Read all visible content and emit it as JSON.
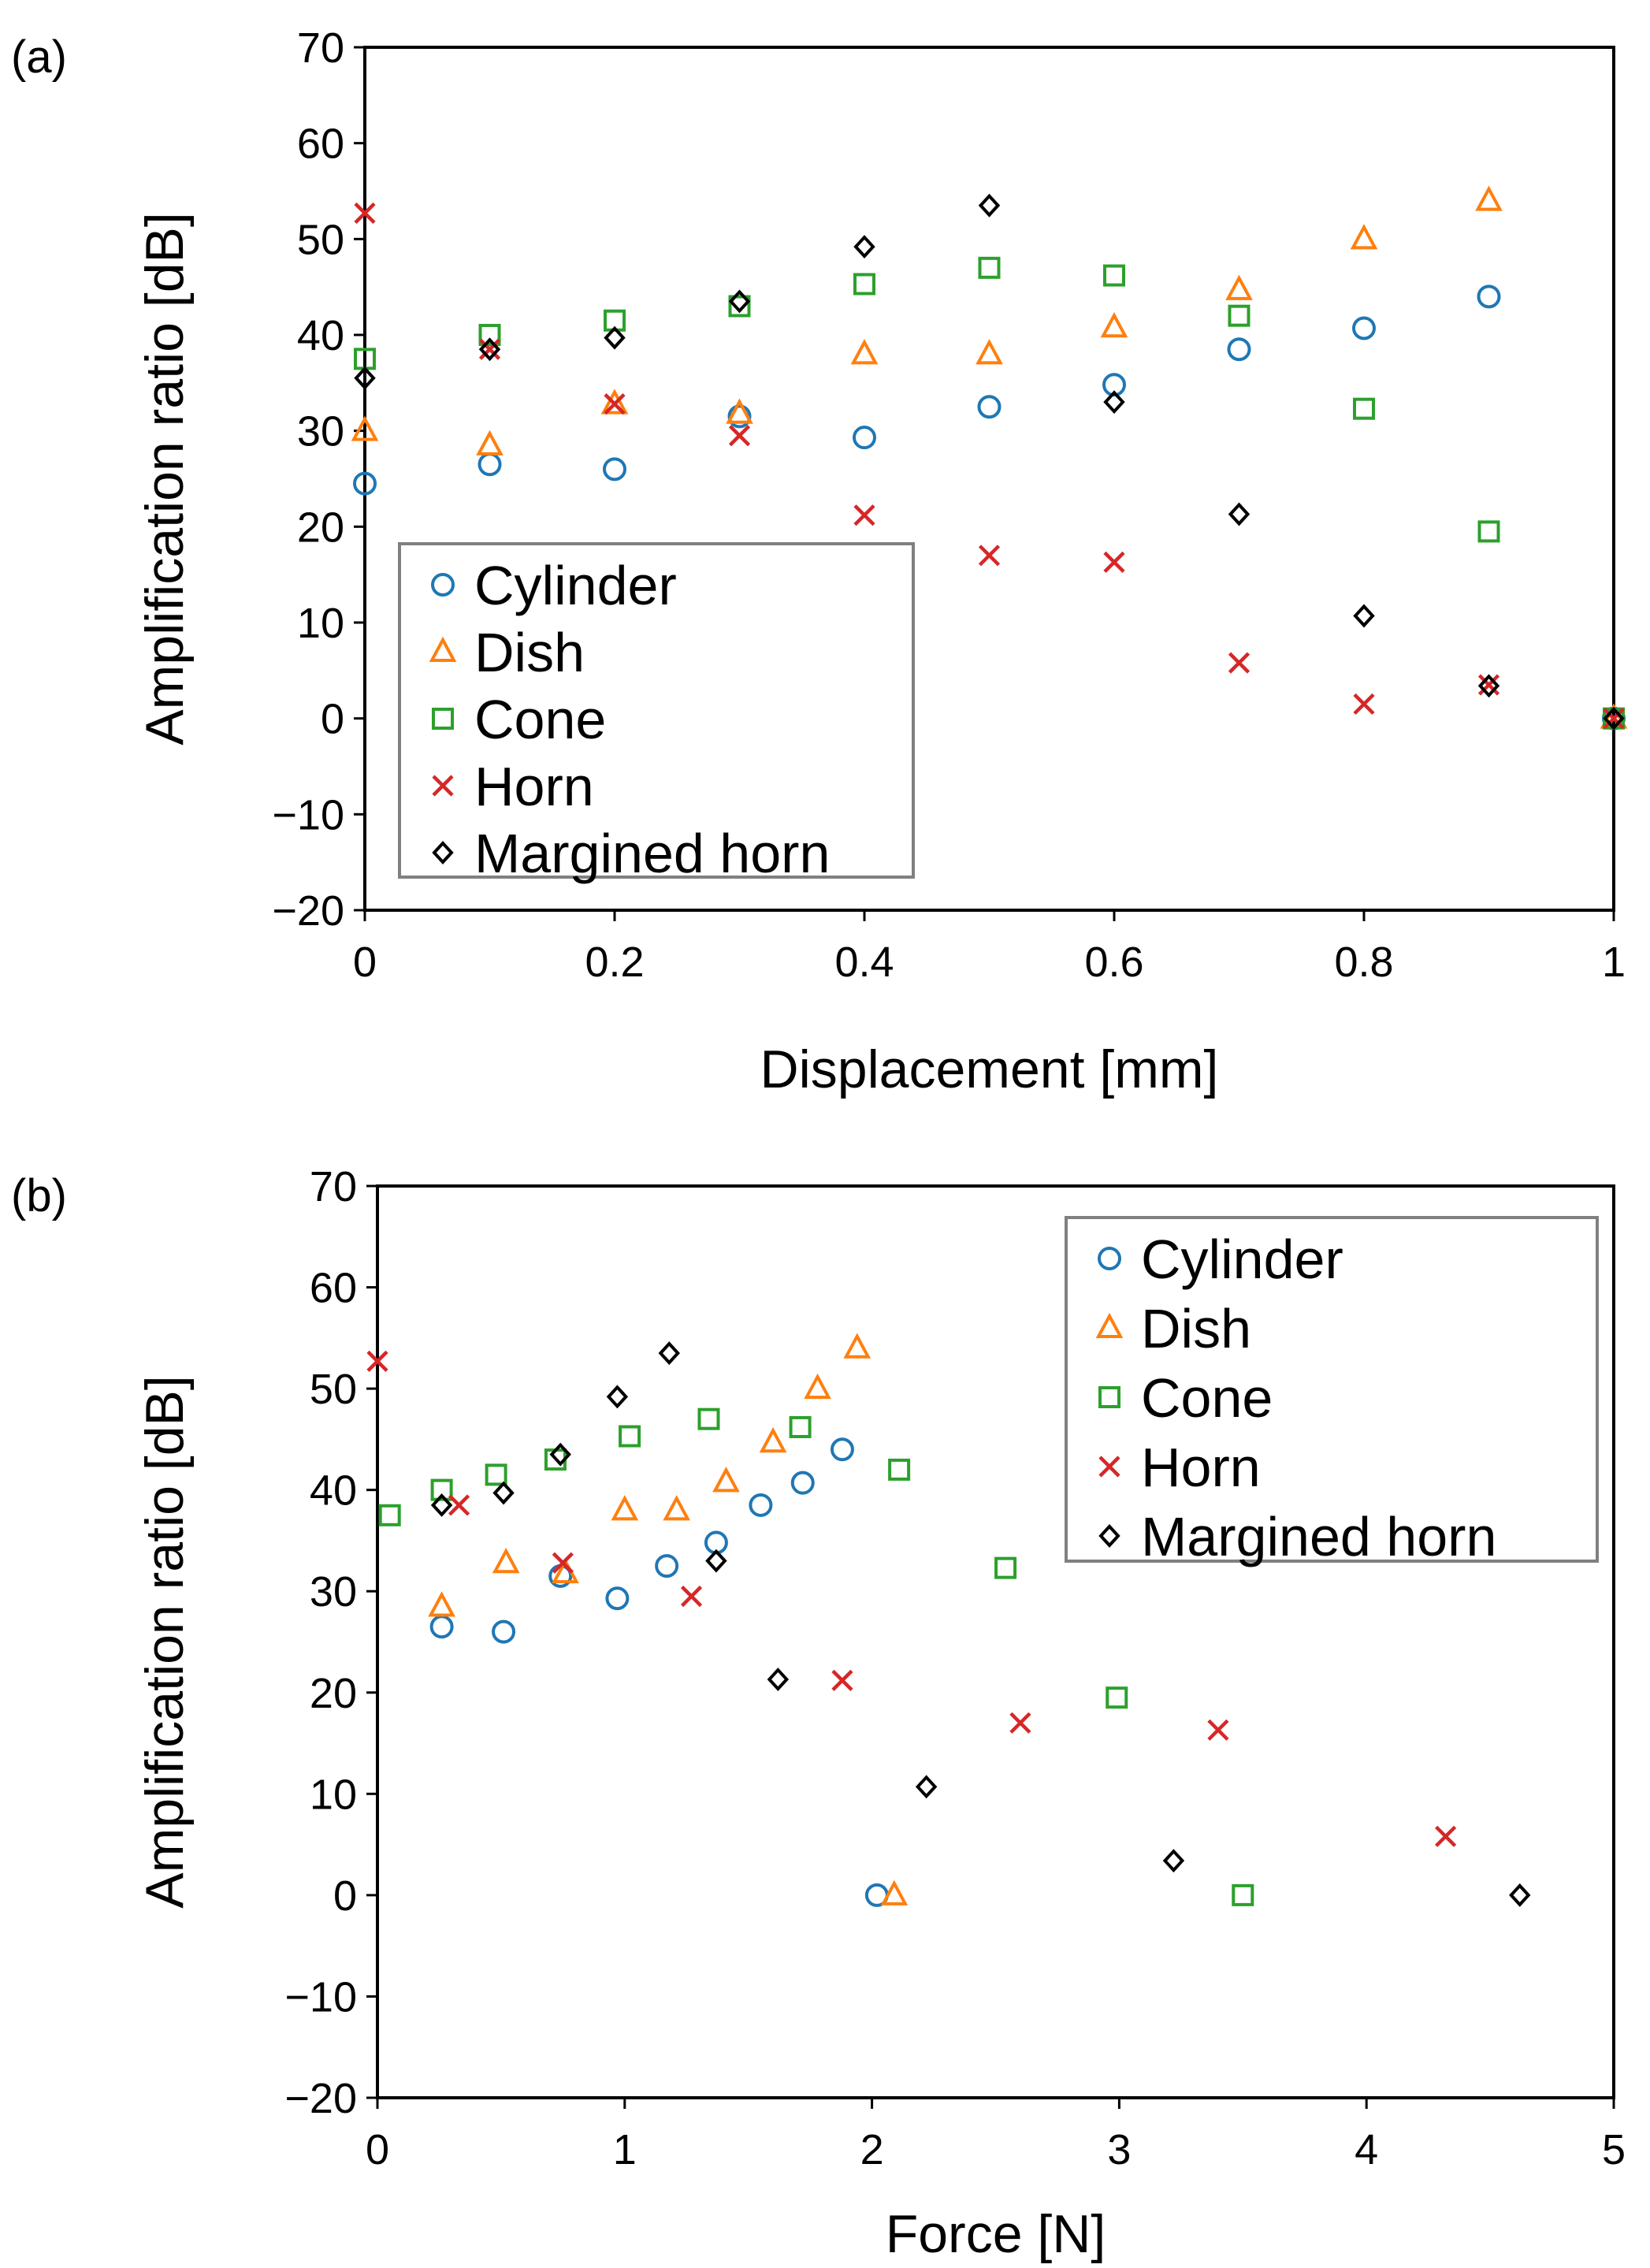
{
  "chart_data": [
    {
      "type": "scatter",
      "panel_label": "(a)",
      "xlabel": "Displacement [mm]",
      "ylabel": "Amplification ratio [dB]",
      "xlim": [
        0,
        1
      ],
      "ylim": [
        -20,
        70
      ],
      "x_ticks": [
        0,
        0.2,
        0.4,
        0.6,
        0.8,
        1
      ],
      "x_tick_labels": [
        "0",
        "0.2",
        "0.4",
        "0.6",
        "0.8",
        "1"
      ],
      "y_ticks": [
        -20,
        -10,
        0,
        10,
        20,
        30,
        40,
        50,
        60,
        70
      ],
      "y_tick_labels": [
        "−20",
        "−10",
        "0",
        "10",
        "20",
        "30",
        "40",
        "50",
        "60",
        "70"
      ],
      "grid": false,
      "legend_position": "bottom-left",
      "series": [
        {
          "name": "Cylinder",
          "marker": "circle",
          "color": "#1f77b4",
          "x": [
            0,
            0.1,
            0.2,
            0.3,
            0.4,
            0.5,
            0.6,
            0.7,
            0.8,
            0.9,
            1.0
          ],
          "y": [
            24.5,
            26.5,
            26,
            31.5,
            29.3,
            32.5,
            34.8,
            38.5,
            40.7,
            44,
            0
          ]
        },
        {
          "name": "Dish",
          "marker": "triangle",
          "color": "#ff7f0e",
          "x": [
            0,
            0.1,
            0.2,
            0.3,
            0.4,
            0.5,
            0.6,
            0.7,
            0.8,
            0.9,
            1.0
          ],
          "y": [
            30,
            28.5,
            32.8,
            31.8,
            38,
            38,
            40.8,
            44.7,
            50,
            54,
            0
          ]
        },
        {
          "name": "Cone",
          "marker": "square",
          "color": "#2ca02c",
          "x": [
            0,
            0.1,
            0.2,
            0.3,
            0.4,
            0.5,
            0.6,
            0.7,
            0.8,
            0.9,
            1.0
          ],
          "y": [
            37.5,
            40,
            41.5,
            43,
            45.3,
            47,
            46.2,
            42,
            32.3,
            19.5,
            0
          ]
        },
        {
          "name": "Horn",
          "marker": "x",
          "color": "#d62728",
          "x": [
            0,
            0.1,
            0.2,
            0.3,
            0.4,
            0.5,
            0.6,
            0.7,
            0.8,
            0.9,
            1.0
          ],
          "y": [
            52.7,
            38.5,
            32.8,
            29.5,
            21.2,
            17,
            16.3,
            5.8,
            1.5,
            3.5,
            0
          ]
        },
        {
          "name": "Margined horn",
          "marker": "diamond",
          "color": "#000000",
          "x": [
            0,
            0.1,
            0.2,
            0.3,
            0.4,
            0.5,
            0.6,
            0.7,
            0.8,
            0.9,
            1.0
          ],
          "y": [
            35.5,
            38.5,
            39.7,
            43.5,
            49.2,
            53.5,
            33,
            21.3,
            10.7,
            3.4,
            0
          ]
        }
      ]
    },
    {
      "type": "scatter",
      "panel_label": "(b)",
      "xlabel": "Force [N]",
      "ylabel": "Amplification ratio [dB]",
      "xlim": [
        0,
        5
      ],
      "ylim": [
        -20,
        70
      ],
      "x_ticks": [
        0,
        1,
        2,
        3,
        4,
        5
      ],
      "x_tick_labels": [
        "0",
        "1",
        "2",
        "3",
        "4",
        "5"
      ],
      "y_ticks": [
        -20,
        -10,
        0,
        10,
        20,
        30,
        40,
        50,
        60,
        70
      ],
      "y_tick_labels": [
        "−20",
        "−10",
        "0",
        "10",
        "20",
        "30",
        "40",
        "50",
        "60",
        "70"
      ],
      "grid": false,
      "legend_position": "top-right",
      "series": [
        {
          "name": "Cylinder",
          "marker": "circle",
          "color": "#1f77b4",
          "x": [
            0.26,
            0.51,
            0.74,
            0.97,
            1.17,
            1.37,
            1.55,
            1.72,
            1.88,
            2.02
          ],
          "y": [
            26.5,
            26,
            31.5,
            29.3,
            32.5,
            34.8,
            38.5,
            40.7,
            44,
            0
          ]
        },
        {
          "name": "Dish",
          "marker": "triangle",
          "color": "#ff7f0e",
          "x": [
            0.26,
            0.52,
            0.76,
            1.0,
            1.21,
            1.41,
            1.6,
            1.78,
            1.94,
            2.09
          ],
          "y": [
            28.5,
            32.8,
            31.8,
            38,
            38,
            40.8,
            44.7,
            50,
            54,
            0
          ]
        },
        {
          "name": "Cone",
          "marker": "square",
          "color": "#2ca02c",
          "x": [
            0.05,
            0.26,
            0.48,
            0.72,
            1.02,
            1.34,
            1.71,
            2.11,
            2.54,
            2.99,
            3.5
          ],
          "y": [
            37.5,
            40,
            41.5,
            43,
            45.3,
            47,
            46.2,
            42,
            32.3,
            19.5,
            0
          ]
        },
        {
          "name": "Horn",
          "marker": "x",
          "color": "#d62728",
          "x": [
            0,
            0.33,
            0.75,
            1.27,
            1.88,
            2.6,
            3.4,
            4.32
          ],
          "y": [
            52.7,
            38.5,
            32.8,
            29.5,
            21.2,
            17,
            16.3,
            5.8
          ]
        },
        {
          "name": "Margined horn",
          "marker": "diamond",
          "color": "#000000",
          "x": [
            0.26,
            0.51,
            0.74,
            0.97,
            1.18,
            1.37,
            1.62,
            2.22,
            3.22,
            4.62
          ],
          "y": [
            38.5,
            39.7,
            43.5,
            49.2,
            53.5,
            33,
            21.3,
            10.7,
            3.4,
            0
          ]
        }
      ]
    }
  ]
}
